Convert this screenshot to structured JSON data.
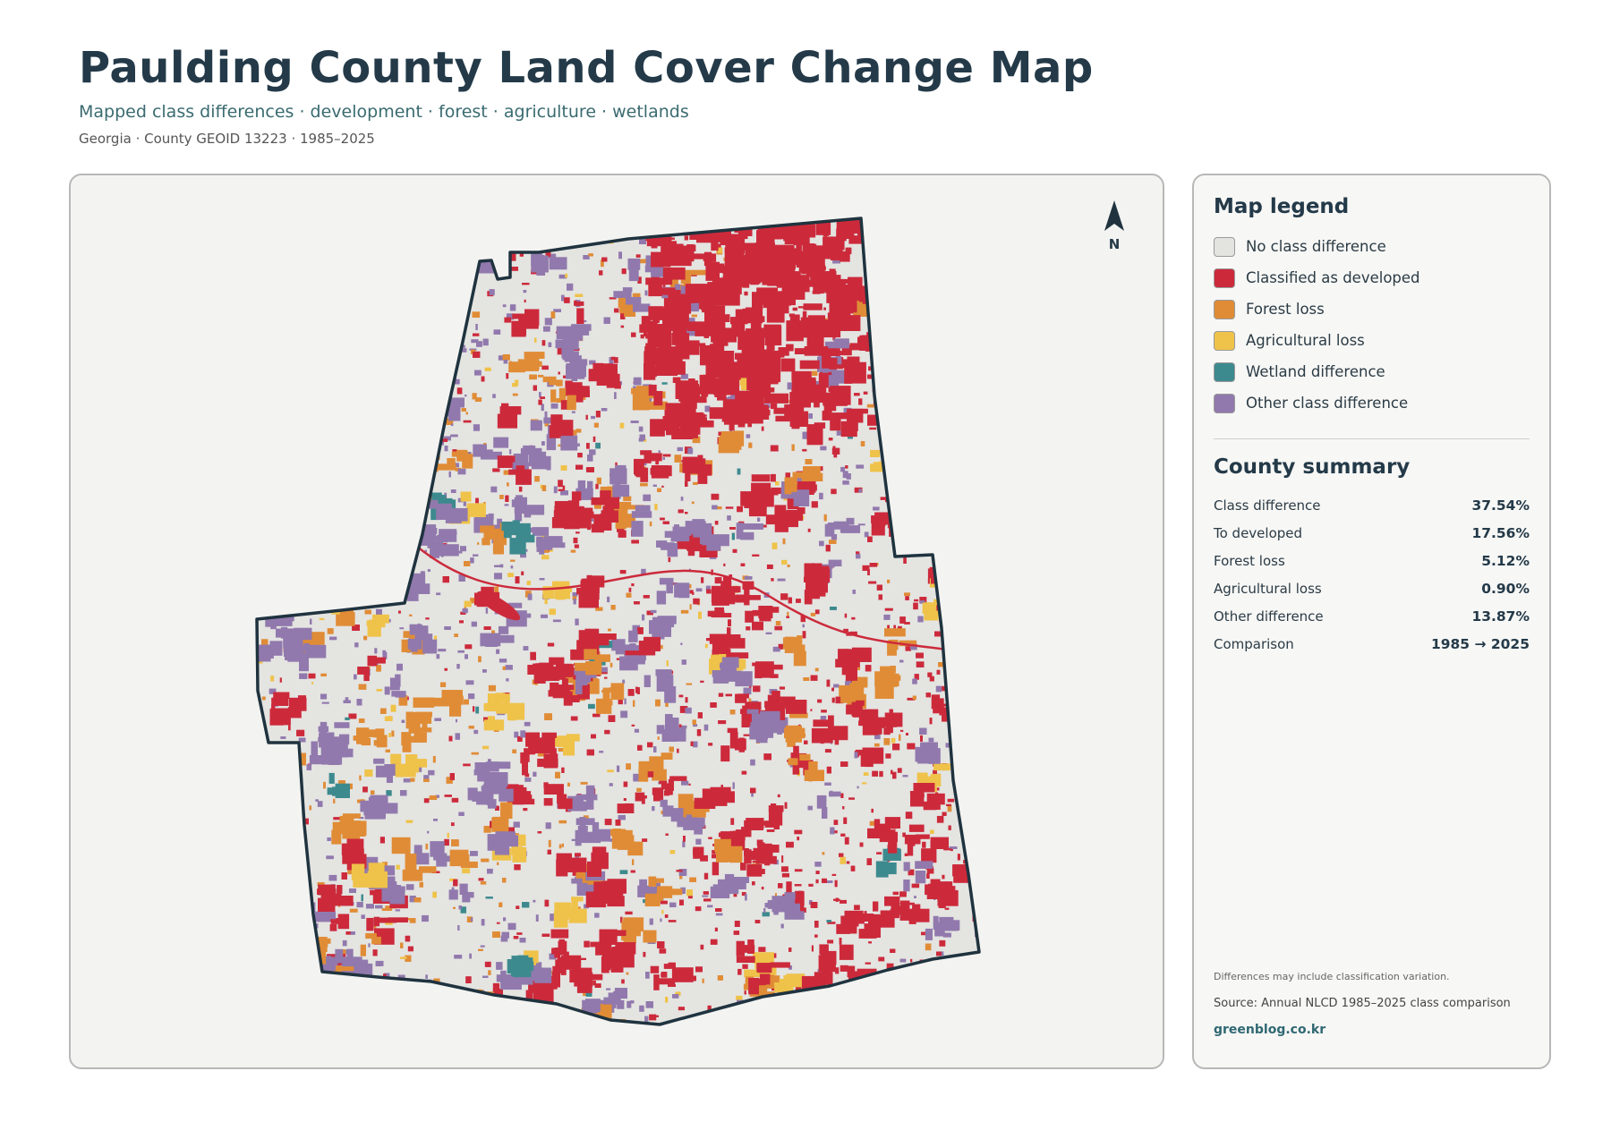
{
  "header": {
    "title": "Paulding County Land Cover Change Map",
    "subtitle": "Mapped class differences · development · forest · agriculture · wetlands",
    "meta": "Georgia · County GEOID 13223 · 1985–2025"
  },
  "map": {
    "north_label": "N",
    "north_icon": "north-arrow-icon",
    "background_color": "#e4e4e1",
    "outline_color": "#1f333f"
  },
  "legend": {
    "title": "Map legend",
    "items": [
      {
        "label": "No class difference",
        "color": "#e3e3e0"
      },
      {
        "label": "Classified as developed",
        "color": "#cc2a3b"
      },
      {
        "label": "Forest loss",
        "color": "#e08c36"
      },
      {
        "label": "Agricultural loss",
        "color": "#efc24a"
      },
      {
        "label": "Wetland difference",
        "color": "#3d8a8e"
      },
      {
        "label": "Other class difference",
        "color": "#9179ad"
      }
    ]
  },
  "summary": {
    "title": "County summary",
    "rows": [
      {
        "label": "Class difference",
        "value": "37.54%"
      },
      {
        "label": "To developed",
        "value": "17.56%"
      },
      {
        "label": "Forest loss",
        "value": "5.12%"
      },
      {
        "label": "Agricultural loss",
        "value": "0.90%"
      },
      {
        "label": "Other difference",
        "value": "13.87%"
      },
      {
        "label": "Comparison",
        "value": "1985 → 2025"
      }
    ]
  },
  "footer": {
    "note": "Differences may include classification variation.",
    "source": "Source: Annual NLCD 1985–2025 class comparison",
    "brand": "greenblog.co.kr"
  }
}
